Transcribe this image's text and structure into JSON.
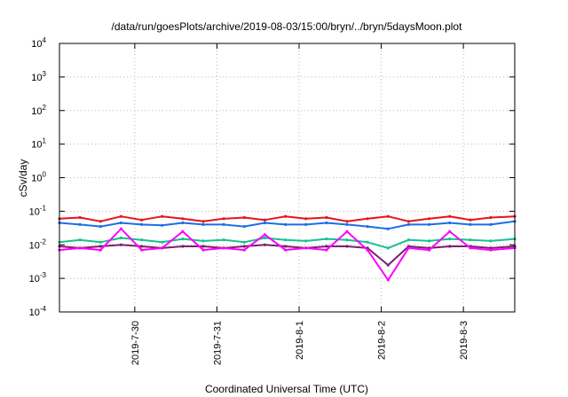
{
  "chart_data": {
    "type": "line",
    "title": "/data/run/goesPlots/archive/2019-08-03/15:00/bryn/../bryn/5daysMoon.plot",
    "xlabel": "Coordinated Universal Time (UTC)",
    "ylabel": "cSv/day",
    "yscale": "log",
    "ylim": [
      0.0001,
      10000
    ],
    "xlim": [
      "2019-07-29 02:00",
      "2019-08-03 15:00"
    ],
    "grid": true,
    "legend": "none",
    "y_ticks": [
      {
        "base": "10",
        "exp": "4"
      },
      {
        "base": "10",
        "exp": "3"
      },
      {
        "base": "10",
        "exp": "2"
      },
      {
        "base": "10",
        "exp": "1"
      },
      {
        "base": "10",
        "exp": "0"
      },
      {
        "base": "10",
        "exp": "-1"
      },
      {
        "base": "10",
        "exp": "-2"
      },
      {
        "base": "10",
        "exp": "-3"
      },
      {
        "base": "10",
        "exp": "-4"
      }
    ],
    "x_ticks": [
      "2019-7-30",
      "2019-7-31",
      "2019-8-1",
      "2019-8-2",
      "2019-8-3"
    ],
    "x": [
      "2019-07-29 02:00",
      "2019-07-29 08:00",
      "2019-07-29 14:00",
      "2019-07-29 20:00",
      "2019-07-30 02:00",
      "2019-07-30 08:00",
      "2019-07-30 14:00",
      "2019-07-30 20:00",
      "2019-07-31 02:00",
      "2019-07-31 08:00",
      "2019-07-31 14:00",
      "2019-07-31 20:00",
      "2019-08-01 02:00",
      "2019-08-01 08:00",
      "2019-08-01 14:00",
      "2019-08-01 20:00",
      "2019-08-02 02:00",
      "2019-08-02 08:00",
      "2019-08-02 14:00",
      "2019-08-02 20:00",
      "2019-08-03 02:00",
      "2019-08-03 08:00",
      "2019-08-03 15:00"
    ],
    "series": [
      {
        "color": "#e8121a",
        "values": [
          0.06,
          0.065,
          0.05,
          0.07,
          0.055,
          0.07,
          0.06,
          0.05,
          0.06,
          0.065,
          0.055,
          0.07,
          0.06,
          0.065,
          0.05,
          0.06,
          0.07,
          0.05,
          0.06,
          0.07,
          0.055,
          0.065,
          0.07
        ]
      },
      {
        "color": "#1b6ee8",
        "values": [
          0.045,
          0.04,
          0.035,
          0.045,
          0.04,
          0.038,
          0.045,
          0.04,
          0.04,
          0.035,
          0.045,
          0.04,
          0.04,
          0.045,
          0.04,
          0.035,
          0.03,
          0.04,
          0.04,
          0.045,
          0.04,
          0.04,
          0.05
        ]
      },
      {
        "color": "#14c28f",
        "values": [
          0.012,
          0.014,
          0.012,
          0.016,
          0.014,
          0.012,
          0.015,
          0.013,
          0.014,
          0.012,
          0.016,
          0.014,
          0.013,
          0.015,
          0.014,
          0.012,
          0.008,
          0.014,
          0.013,
          0.015,
          0.014,
          0.013,
          0.015
        ]
      },
      {
        "color": "#7a1f6e",
        "values": [
          0.009,
          0.008,
          0.009,
          0.01,
          0.009,
          0.008,
          0.009,
          0.009,
          0.008,
          0.009,
          0.01,
          0.009,
          0.008,
          0.009,
          0.009,
          0.008,
          0.0025,
          0.009,
          0.008,
          0.009,
          0.009,
          0.008,
          0.009
        ]
      },
      {
        "color": "#ff00ff",
        "values": [
          0.007,
          0.008,
          0.007,
          0.03,
          0.007,
          0.008,
          0.025,
          0.007,
          0.008,
          0.007,
          0.02,
          0.007,
          0.008,
          0.007,
          0.025,
          0.007,
          0.0009,
          0.008,
          0.007,
          0.025,
          0.008,
          0.007,
          0.008
        ]
      }
    ]
  }
}
